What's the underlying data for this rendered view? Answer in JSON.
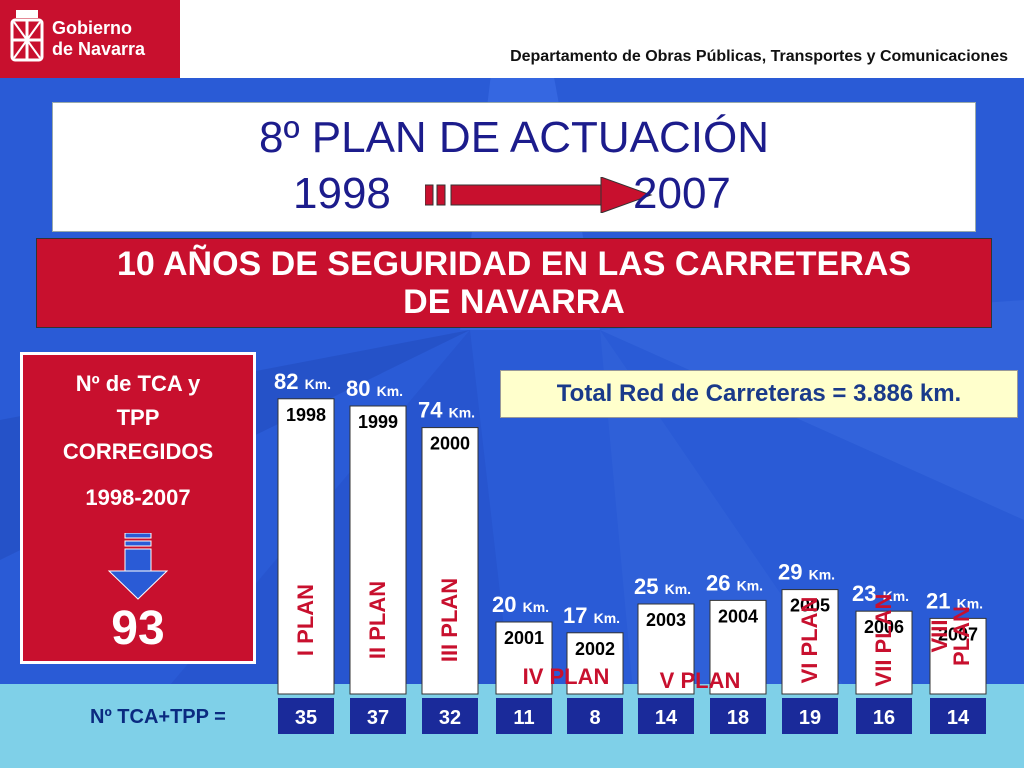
{
  "header": {
    "org_line1": "Gobierno",
    "org_line2": "de Navarra",
    "department": "Departamento de Obras Públicas, Transportes y Comunicaciones"
  },
  "title": {
    "line1": "8º PLAN DE ACTUACIÓN",
    "year_from": "1998",
    "year_to": "2007"
  },
  "subtitle": {
    "line1": "10 AÑOS DE SEGURIDAD EN LAS CARRETERAS",
    "line2": "DE NAVARRA"
  },
  "summary": {
    "label_line1": "Nº de TCA y",
    "label_line2": "TPP",
    "label_line3": "CORREGIDOS",
    "years": "1998-2007",
    "total": "93"
  },
  "network_total": "Total Red de Carreteras = 3.886 km.",
  "row_label": "Nº TCA+TPP =",
  "colors": {
    "bar_fill": "#ffffff",
    "background": "#2a5bd6",
    "red": "#c8102e",
    "cell_fill": "#1a2a9a"
  },
  "chart_data": {
    "type": "bar",
    "unit": "Km.",
    "categories": [
      "1998",
      "1999",
      "2000",
      "2001",
      "2002",
      "2003",
      "2004",
      "2005",
      "2006",
      "2007"
    ],
    "values": [
      82,
      80,
      74,
      20,
      17,
      25,
      26,
      29,
      23,
      21
    ],
    "tca_tpp": [
      35,
      37,
      32,
      11,
      8,
      14,
      18,
      19,
      16,
      14
    ],
    "plans": [
      {
        "label": "I PLAN",
        "vertical": true
      },
      {
        "label": "II PLAN",
        "vertical": true
      },
      {
        "label": "III PLAN",
        "vertical": true
      },
      {
        "label": "IV PLAN",
        "vertical": false
      },
      {
        "label": "V PLAN",
        "vertical": false
      },
      {
        "label": "VI PLAN",
        "vertical": true
      },
      {
        "label": "VII PLAN",
        "vertical": true
      },
      {
        "label": "VIII PLAN",
        "vertical": true,
        "lines": [
          "VIII",
          "PLAN"
        ]
      }
    ]
  }
}
